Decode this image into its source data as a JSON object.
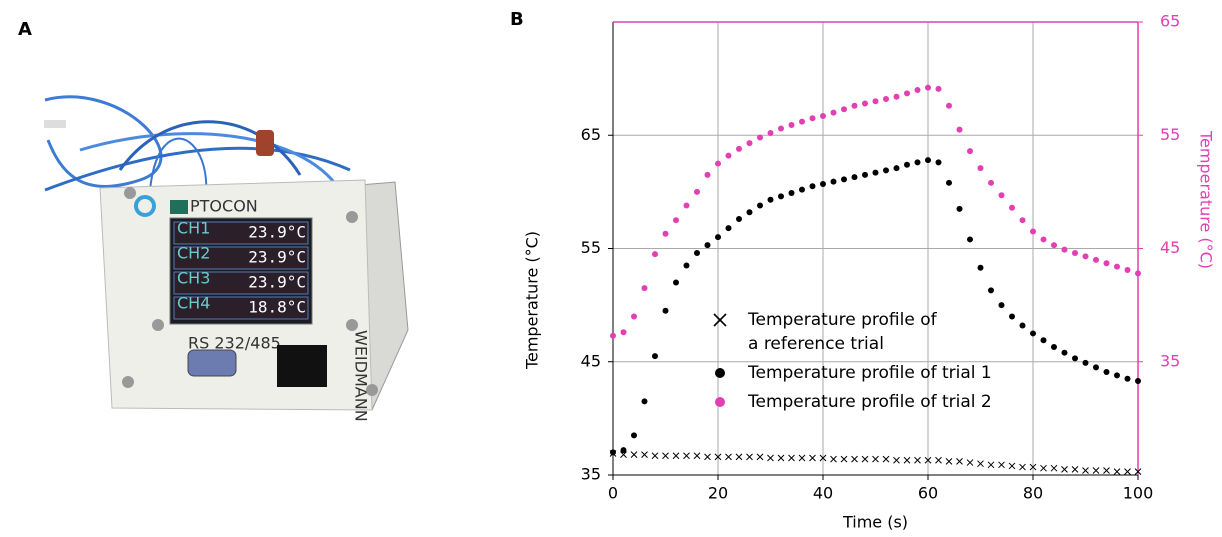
{
  "panel_labels": [
    "A",
    "B"
  ],
  "photo": {
    "brand": "PTOCON",
    "channels": [
      "CH1",
      "CH2",
      "CH3",
      "CH4"
    ],
    "readings": [
      "23.9°C",
      "23.9°C",
      "23.9°C",
      "18.8°C"
    ],
    "port_label": "RS 232/485",
    "side_label": "WEIDMANN"
  },
  "chart_data": {
    "type": "scatter",
    "x_label": "Time (s)",
    "y_label": "Temperature (°C)",
    "y2_label": "Temperature (°C)",
    "xlim": [
      0,
      100
    ],
    "xticks": [
      0,
      20,
      40,
      60,
      80,
      100
    ],
    "ylim": [
      35,
      75
    ],
    "yticks": [
      35,
      45,
      55,
      65
    ],
    "y2lim": [
      25,
      65
    ],
    "y2ticks": [
      35,
      45,
      55,
      65
    ],
    "grid": true,
    "y2_color": "#e23fb4",
    "x": [
      0,
      2,
      4,
      6,
      8,
      10,
      12,
      14,
      16,
      18,
      20,
      22,
      24,
      26,
      28,
      30,
      32,
      34,
      36,
      38,
      40,
      42,
      44,
      46,
      48,
      50,
      52,
      54,
      56,
      58,
      60,
      62,
      64,
      66,
      68,
      70,
      72,
      74,
      76,
      78,
      80,
      82,
      84,
      86,
      88,
      90,
      92,
      94,
      96,
      98,
      100
    ],
    "series": [
      {
        "name": "Temperature profile of\na reference trial",
        "color": "#000000",
        "marker": "x",
        "axis": "y",
        "values": [
          36.9,
          36.8,
          36.8,
          36.8,
          36.7,
          36.7,
          36.7,
          36.7,
          36.7,
          36.6,
          36.6,
          36.6,
          36.6,
          36.6,
          36.6,
          36.5,
          36.5,
          36.5,
          36.5,
          36.5,
          36.5,
          36.4,
          36.4,
          36.4,
          36.4,
          36.4,
          36.4,
          36.3,
          36.3,
          36.3,
          36.3,
          36.3,
          36.2,
          36.2,
          36.1,
          36.0,
          35.9,
          35.9,
          35.8,
          35.7,
          35.7,
          35.6,
          35.6,
          35.5,
          35.5,
          35.4,
          35.4,
          35.4,
          35.3,
          35.3,
          35.3
        ]
      },
      {
        "name": "Temperature profile of trial 1",
        "color": "#000000",
        "marker": "o",
        "axis": "y",
        "values": [
          37.0,
          37.2,
          38.5,
          41.5,
          45.5,
          49.5,
          52.0,
          53.5,
          54.6,
          55.3,
          56.0,
          56.8,
          57.6,
          58.2,
          58.8,
          59.3,
          59.6,
          59.9,
          60.2,
          60.5,
          60.7,
          60.9,
          61.1,
          61.3,
          61.5,
          61.7,
          61.9,
          62.1,
          62.4,
          62.6,
          62.8,
          62.6,
          60.8,
          58.5,
          55.8,
          53.3,
          51.3,
          50.0,
          49.0,
          48.2,
          47.5,
          46.9,
          46.3,
          45.8,
          45.3,
          44.9,
          44.5,
          44.1,
          43.8,
          43.5,
          43.3
        ]
      },
      {
        "name": "Temperature profile of trial 2",
        "color": "#e23fb4",
        "marker": "o",
        "axis": "y2",
        "values": [
          37.3,
          37.6,
          39.0,
          41.5,
          44.5,
          46.3,
          47.5,
          48.8,
          50.0,
          51.5,
          52.5,
          53.2,
          53.8,
          54.3,
          54.8,
          55.2,
          55.6,
          55.9,
          56.2,
          56.5,
          56.7,
          57.0,
          57.3,
          57.6,
          57.8,
          58.0,
          58.2,
          58.4,
          58.7,
          59.0,
          59.2,
          59.1,
          57.6,
          55.5,
          53.6,
          52.1,
          50.8,
          49.7,
          48.6,
          47.5,
          46.5,
          45.8,
          45.3,
          44.9,
          44.6,
          44.3,
          44.0,
          43.7,
          43.4,
          43.1,
          42.8
        ]
      }
    ]
  }
}
